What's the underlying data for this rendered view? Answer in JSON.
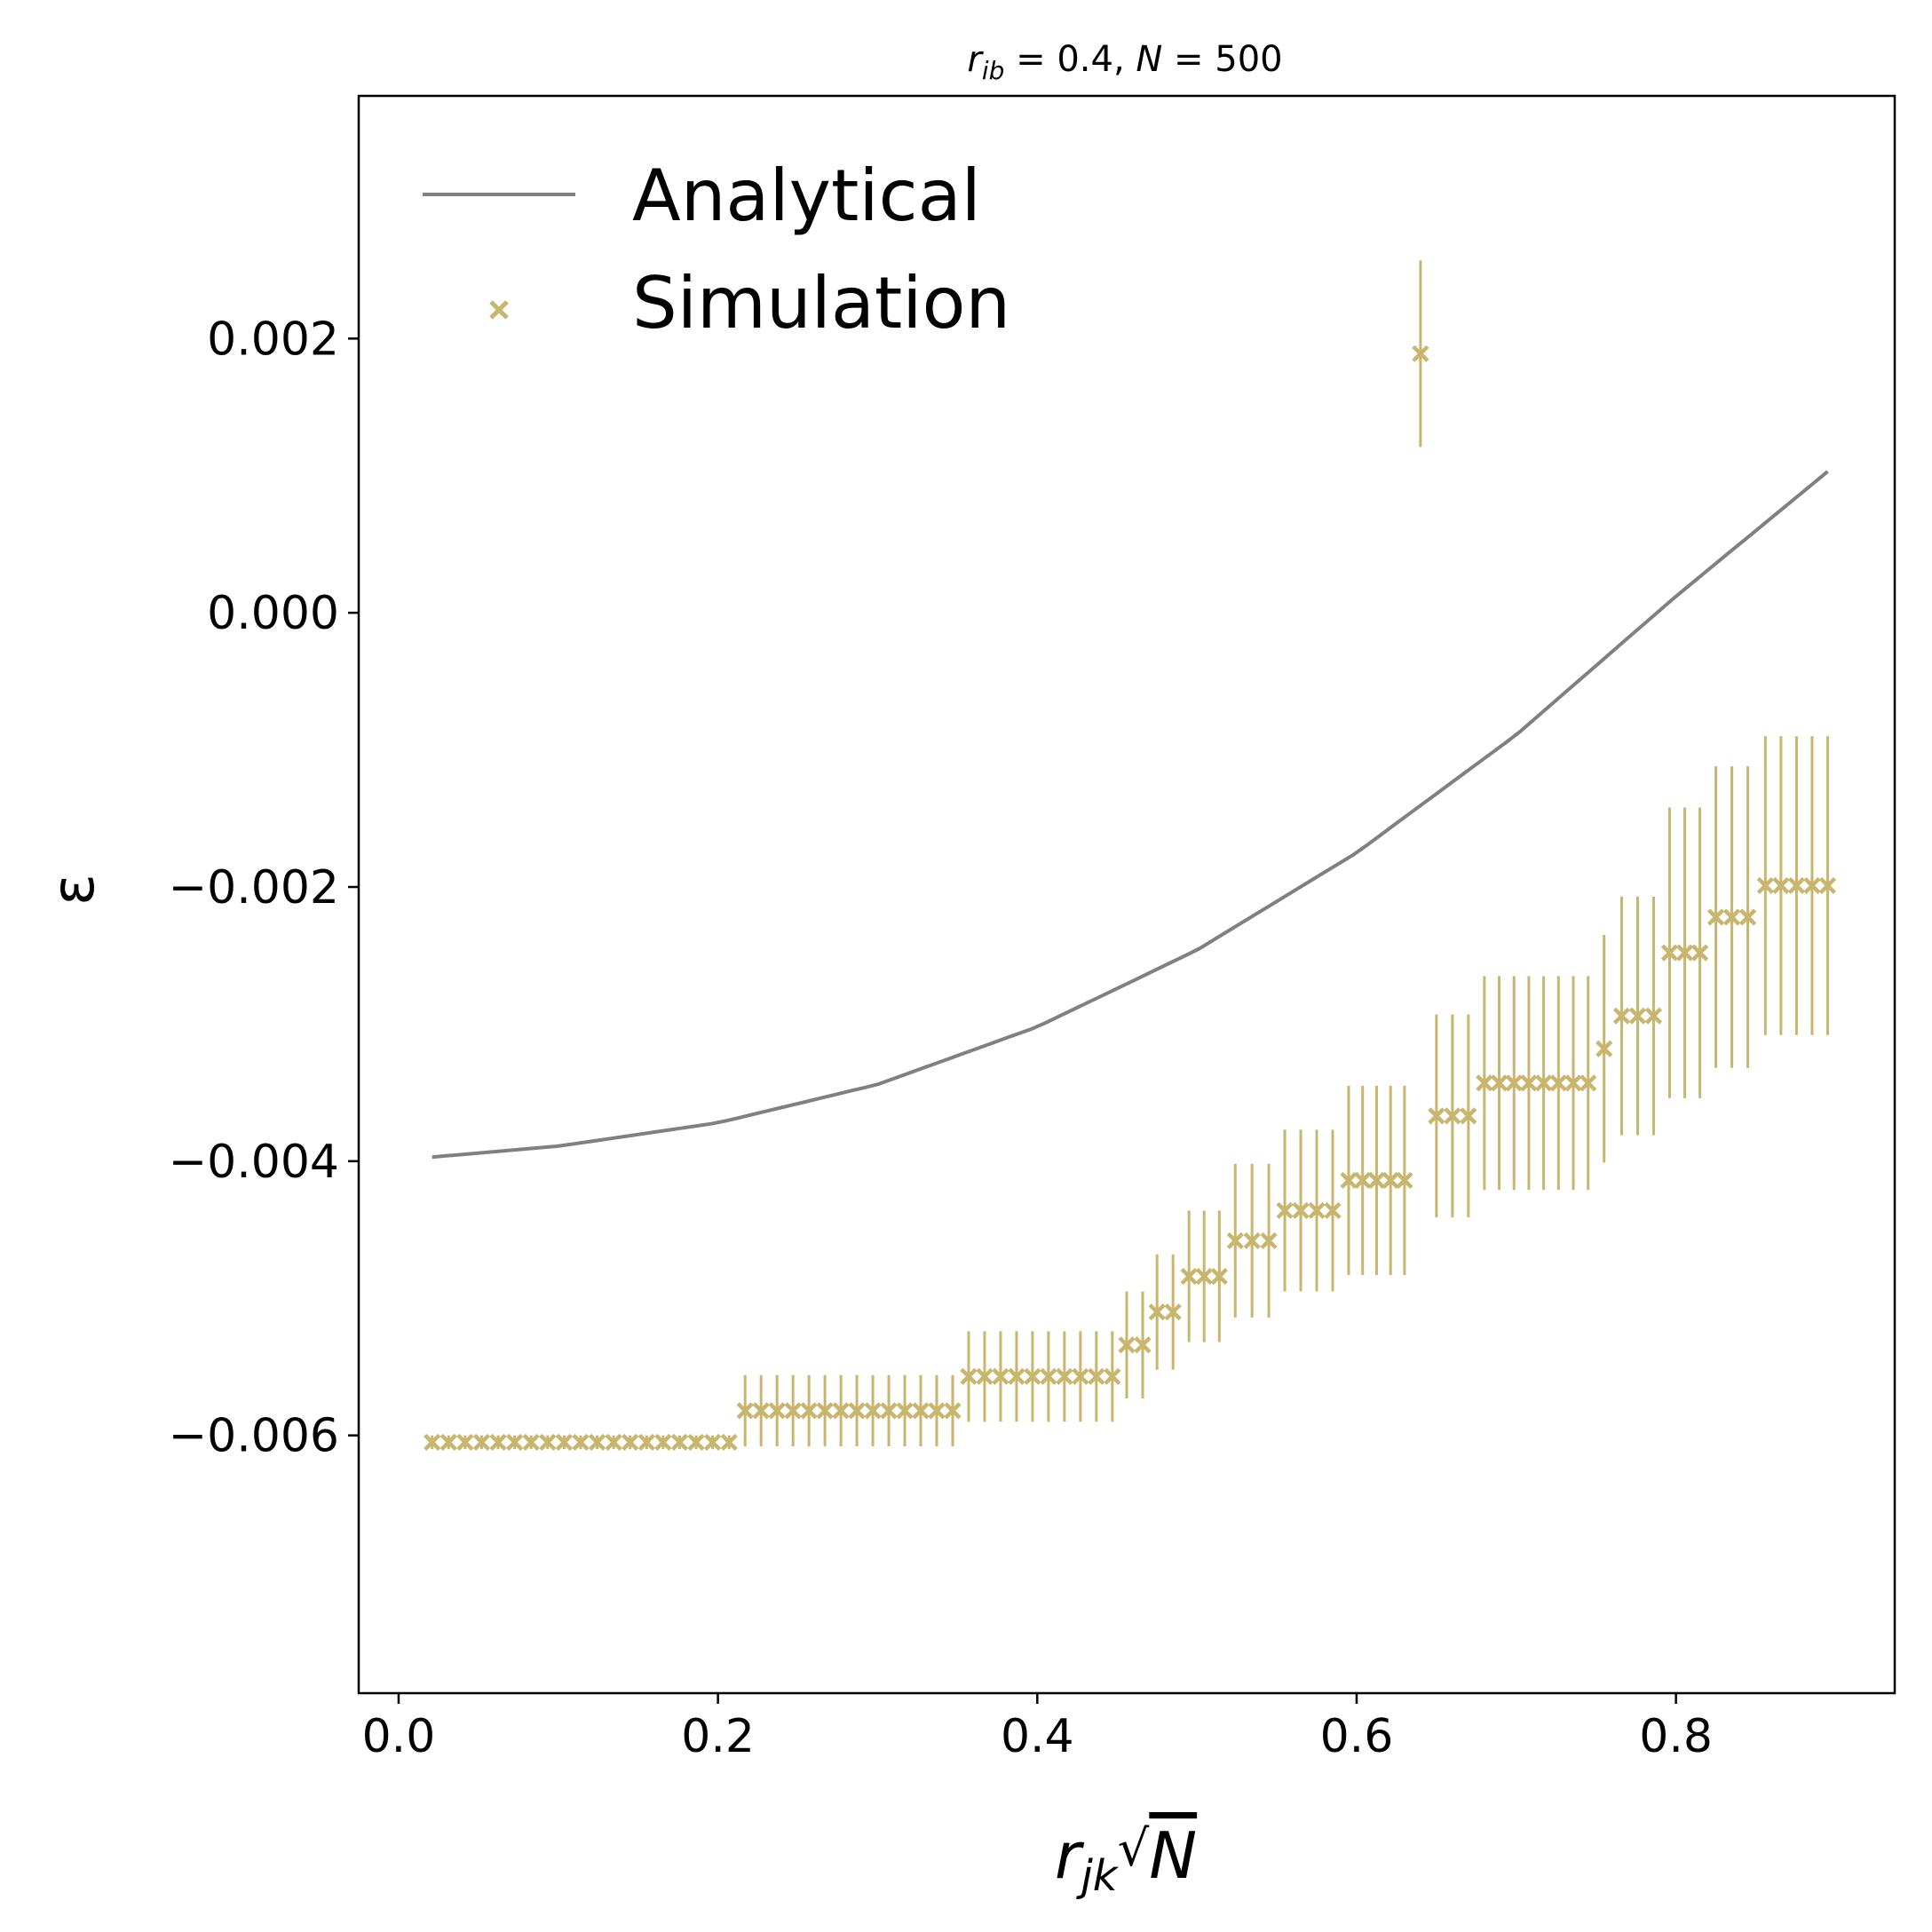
{
  "chart_data": {
    "type": "scatter",
    "title": {
      "r": "r",
      "sub": "ib",
      "rest": " = 0.4, ",
      "n": "N",
      "rest2": " = 500"
    },
    "xlabel": {
      "r": "r",
      "sub": "jk",
      "sqrt": "√",
      "n": "N"
    },
    "ylabel": "ε",
    "xlim": [
      -0.025,
      0.937
    ],
    "ylim": [
      -0.00788,
      0.00377
    ],
    "xticks": [
      0.0,
      0.2,
      0.4,
      0.6,
      0.8
    ],
    "xtick_labels": [
      "0.0",
      "0.2",
      "0.4",
      "0.6",
      "0.8"
    ],
    "yticks": [
      -0.006,
      -0.004,
      -0.002,
      0.0,
      0.002
    ],
    "ytick_labels": [
      "−0.006",
      "−0.004",
      "−0.002",
      "0.000",
      "0.002"
    ],
    "grid": false,
    "legend_position": "top-left",
    "colors": {
      "analytical": "#808080",
      "simulation": "#c8b66e",
      "axes": "#000000"
    },
    "series": [
      {
        "name": "Analytical",
        "kind": "line",
        "x": [
          0.021,
          0.1,
          0.2,
          0.3,
          0.4,
          0.5,
          0.6,
          0.7,
          0.8,
          0.895
        ],
        "y": [
          -0.00397,
          -0.00389,
          -0.00372,
          -0.00344,
          -0.00302,
          -0.00246,
          -0.00175,
          -0.00089,
          0.00012,
          0.00103
        ]
      },
      {
        "name": "Simulation",
        "kind": "errorbar",
        "groups": [
          {
            "x_start": 0.021,
            "x_end": 0.207,
            "n": 19,
            "y": -0.00605,
            "yerr": 5e-05
          },
          {
            "x_start": 0.217,
            "x_end": 0.347,
            "n": 14,
            "y": -0.00582,
            "yerr": 0.00026
          },
          {
            "x_start": 0.357,
            "x_end": 0.447,
            "n": 10,
            "y": -0.00557,
            "yerr": 0.00033
          },
          {
            "x_start": 0.456,
            "x_end": 0.466,
            "n": 2,
            "y": -0.00534,
            "yerr": 0.00039
          },
          {
            "x_start": 0.475,
            "x_end": 0.485,
            "n": 2,
            "y": -0.0051,
            "yerr": 0.00042
          },
          {
            "x_start": 0.495,
            "x_end": 0.514,
            "n": 3,
            "y": -0.00484,
            "yerr": 0.00048
          },
          {
            "x_start": 0.524,
            "x_end": 0.545,
            "n": 3,
            "y": -0.00458,
            "yerr": 0.00056
          },
          {
            "x_start": 0.555,
            "x_end": 0.585,
            "n": 4,
            "y": -0.00436,
            "yerr": 0.00059
          },
          {
            "x_start": 0.595,
            "x_end": 0.63,
            "n": 5,
            "y": -0.00414,
            "yerr": 0.00069
          },
          {
            "x_start": 0.64,
            "x_end": 0.64,
            "n": 1,
            "y": 0.00189,
            "yerr": 0.00068
          },
          {
            "x_start": 0.65,
            "x_end": 0.67,
            "n": 3,
            "y": -0.00367,
            "yerr": 0.00074
          },
          {
            "x_start": 0.68,
            "x_end": 0.745,
            "n": 8,
            "y": -0.00343,
            "yerr": 0.00078
          },
          {
            "x_start": 0.755,
            "x_end": 0.755,
            "n": 1,
            "y": -0.00318,
            "yerr": 0.00083
          },
          {
            "x_start": 0.766,
            "x_end": 0.786,
            "n": 3,
            "y": -0.00294,
            "yerr": 0.00087
          },
          {
            "x_start": 0.796,
            "x_end": 0.815,
            "n": 3,
            "y": -0.00248,
            "yerr": 0.00106
          },
          {
            "x_start": 0.825,
            "x_end": 0.845,
            "n": 3,
            "y": -0.00222,
            "yerr": 0.0011
          },
          {
            "x_start": 0.856,
            "x_end": 0.895,
            "n": 5,
            "y": -0.00199,
            "yerr": 0.00109
          }
        ]
      }
    ]
  }
}
